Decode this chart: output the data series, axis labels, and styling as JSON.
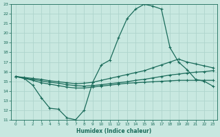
{
  "xlabel": "Humidex (Indice chaleur)",
  "xlim": [
    -0.5,
    23.5
  ],
  "ylim": [
    11,
    23
  ],
  "yticks": [
    11,
    12,
    13,
    14,
    15,
    16,
    17,
    18,
    19,
    20,
    21,
    22,
    23
  ],
  "xticks": [
    0,
    1,
    2,
    3,
    4,
    5,
    6,
    7,
    8,
    9,
    10,
    11,
    12,
    13,
    14,
    15,
    16,
    17,
    18,
    19,
    20,
    21,
    22,
    23
  ],
  "bg_color": "#c8e8e0",
  "grid_color": "#aed4cc",
  "line_color": "#1a6b5a",
  "line1_x": [
    0,
    1,
    2,
    3,
    4,
    5,
    6,
    7,
    8,
    9,
    10,
    11,
    12,
    13,
    14,
    15,
    16,
    17,
    18,
    19,
    20,
    21,
    22,
    23
  ],
  "line1_y": [
    15.5,
    15.3,
    14.6,
    13.3,
    12.2,
    12.1,
    11.2,
    11.0,
    12.0,
    14.9,
    16.7,
    17.2,
    19.5,
    21.5,
    22.5,
    23.0,
    22.8,
    22.5,
    18.5,
    17.0,
    16.2,
    15.2,
    15.0,
    14.5
  ],
  "line2_x": [
    0,
    1,
    2,
    3,
    4,
    5,
    6,
    7,
    8,
    9,
    10,
    11,
    12,
    13,
    14,
    15,
    16,
    17,
    18,
    19,
    20,
    21,
    22,
    23
  ],
  "line2_y": [
    15.5,
    15.35,
    15.2,
    15.05,
    14.9,
    14.8,
    14.65,
    14.55,
    14.5,
    14.55,
    14.65,
    14.75,
    14.85,
    14.95,
    15.1,
    15.2,
    15.35,
    15.5,
    15.65,
    15.75,
    15.85,
    15.95,
    16.0,
    16.1
  ],
  "line3_x": [
    0,
    1,
    2,
    3,
    4,
    5,
    6,
    7,
    8,
    9,
    10,
    11,
    12,
    13,
    14,
    15,
    16,
    17,
    18,
    19,
    20,
    21,
    22,
    23
  ],
  "line3_y": [
    15.5,
    15.4,
    15.3,
    15.2,
    15.05,
    14.95,
    14.85,
    14.75,
    14.8,
    14.9,
    15.1,
    15.3,
    15.5,
    15.7,
    15.9,
    16.1,
    16.4,
    16.7,
    17.0,
    17.3,
    17.0,
    16.8,
    16.6,
    16.4
  ],
  "line4_x": [
    0,
    1,
    2,
    3,
    4,
    5,
    6,
    7,
    8,
    9,
    10,
    11,
    12,
    13,
    14,
    15,
    16,
    17,
    18,
    19,
    20,
    21,
    22,
    23
  ],
  "line4_y": [
    15.5,
    15.3,
    15.1,
    14.85,
    14.7,
    14.55,
    14.4,
    14.3,
    14.3,
    14.4,
    14.5,
    14.6,
    14.7,
    14.8,
    14.85,
    14.9,
    14.95,
    15.0,
    15.05,
    15.1,
    15.1,
    15.1,
    15.1,
    15.1
  ]
}
